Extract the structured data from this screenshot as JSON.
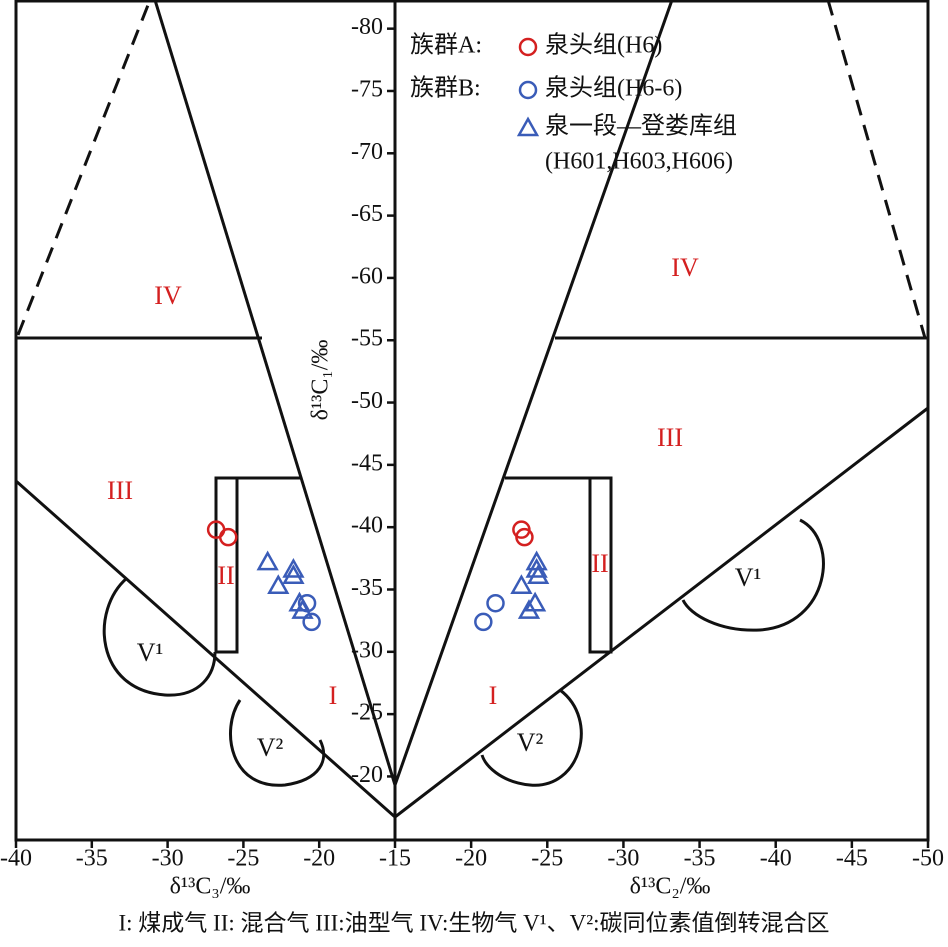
{
  "chart_data": {
    "type": "scatter",
    "ylabel": "δ¹³C₁/‰",
    "ylim": [
      -14.9,
      -82.3
    ],
    "yticks": [
      -20,
      -25,
      -30,
      -35,
      -40,
      -45,
      -50,
      -55,
      -60,
      -65,
      -70,
      -75,
      -80
    ],
    "caption": "I: 煤成气 II: 混合气 III:油型气 IV:生物气 V¹、V²:碳同位素值倒转混合区",
    "series": [
      {
        "group": "族群A:",
        "name": "泉头组(H6)",
        "color": "#d42020",
        "marker": "circle",
        "values": [
          -39.8,
          -39.2
        ]
      },
      {
        "group": "族群B:",
        "name": "泉头组(H6-6)",
        "color": "#3a5cb8",
        "marker": "circle",
        "values": [
          -33.9,
          -32.4
        ]
      },
      {
        "name": "泉一段—登娄库组",
        "name_note": "(H601,H603,H606)",
        "color": "#3a5cb8",
        "marker": "triangle",
        "values": [
          -37.2,
          -36.6,
          -36.1,
          -35.3,
          -33.9,
          -33.3
        ]
      }
    ],
    "panels": [
      {
        "xlabel": "δ¹³C₃/‰",
        "xlim": [
          -40,
          -15
        ],
        "xticks": [
          -40,
          -35,
          -30,
          -25,
          -20,
          -15
        ],
        "x": [
          [
            -26.8,
            -26.0
          ],
          [
            -20.8,
            -20.5
          ],
          [
            -23.4,
            -21.7,
            -21.7,
            -22.7,
            -21.3,
            -21.1
          ]
        ],
        "region_labels": [
          "IV",
          "III",
          "II",
          "I",
          "V¹",
          "V²"
        ]
      },
      {
        "xlabel": "δ¹³C₂/‰",
        "xlim": [
          -15,
          -50
        ],
        "xticks": [
          -20,
          -25,
          -30,
          -35,
          -40,
          -45,
          -50
        ],
        "x": [
          [
            -23.3,
            -23.5
          ],
          [
            -21.6,
            -20.8
          ],
          [
            -24.3,
            -24.3,
            -24.4,
            -23.3,
            -24.2,
            -23.8
          ]
        ],
        "region_labels": [
          "IV",
          "III",
          "II",
          "I",
          "V¹",
          "V²"
        ]
      }
    ]
  }
}
